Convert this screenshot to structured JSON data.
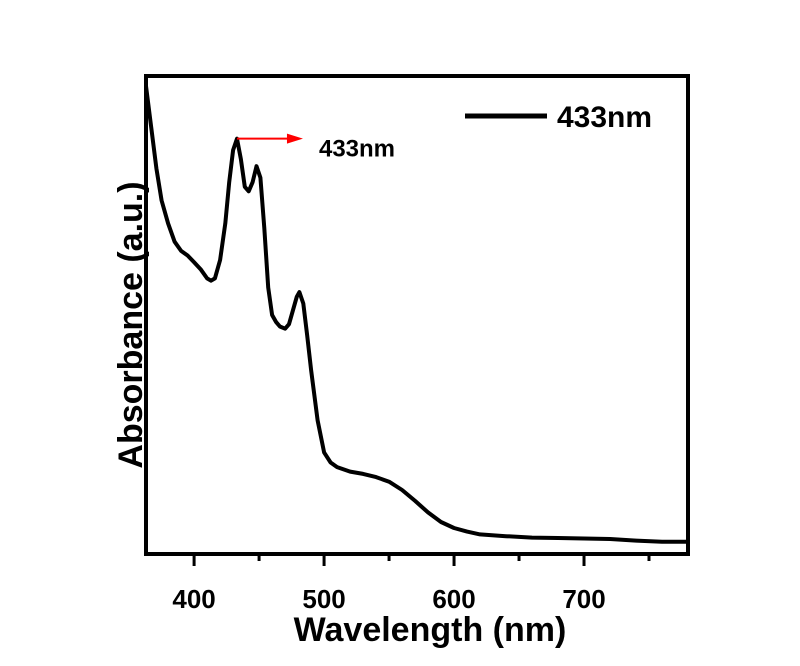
{
  "chart_data": {
    "type": "line",
    "title": "",
    "xlabel": "Wavelength (nm)",
    "ylabel": "Absorbance (a.u.)",
    "xlim": [
      363,
      780
    ],
    "ylim": [
      0,
      1
    ],
    "xticks": [
      400,
      500,
      600,
      700
    ],
    "y_tick_labels": false,
    "grid": false,
    "legend": {
      "position": "top-right"
    },
    "series": [
      {
        "name": "433nm",
        "color": "#000000",
        "x": [
          363,
          367,
          371,
          375,
          380,
          385,
          390,
          395,
          400,
          405,
          410,
          413,
          416,
          420,
          424,
          427,
          430,
          433,
          436,
          439,
          442,
          445,
          448,
          451,
          454,
          457,
          460,
          463,
          466,
          470,
          473,
          476,
          479,
          481,
          484,
          487,
          490,
          495,
          500,
          505,
          510,
          520,
          530,
          540,
          550,
          560,
          570,
          580,
          590,
          600,
          610,
          620,
          640,
          660,
          680,
          700,
          720,
          740,
          760,
          780
        ],
        "y": [
          1.0,
          0.91,
          0.82,
          0.75,
          0.7,
          0.66,
          0.64,
          0.63,
          0.615,
          0.6,
          0.58,
          0.575,
          0.58,
          0.62,
          0.7,
          0.79,
          0.86,
          0.885,
          0.84,
          0.78,
          0.77,
          0.79,
          0.825,
          0.8,
          0.69,
          0.56,
          0.5,
          0.485,
          0.475,
          0.47,
          0.48,
          0.51,
          0.54,
          0.55,
          0.525,
          0.455,
          0.38,
          0.27,
          0.2,
          0.178,
          0.168,
          0.158,
          0.153,
          0.146,
          0.136,
          0.118,
          0.094,
          0.069,
          0.048,
          0.035,
          0.027,
          0.021,
          0.017,
          0.014,
          0.013,
          0.012,
          0.011,
          0.0075,
          0.005,
          0.005
        ]
      }
    ],
    "annotations": [
      {
        "text": "433nm",
        "x": 433,
        "y": 0.885,
        "arrow_color": "#ff0000",
        "arrow_direction": "right"
      }
    ]
  }
}
